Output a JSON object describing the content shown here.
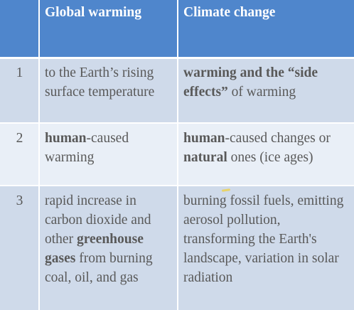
{
  "header": {
    "num": "",
    "col1": "Global warming",
    "col2": "Climate change"
  },
  "rows": [
    {
      "num": "1",
      "col1": [
        {
          "t": "to the Earth’s rising surface temperature",
          "b": false
        }
      ],
      "col2": [
        {
          "t": "warming and the “side effects”",
          "b": true
        },
        {
          "t": " of warming",
          "b": false
        }
      ]
    },
    {
      "num": "2",
      "col1": [
        {
          "t": "human",
          "b": true
        },
        {
          "t": "-caused warming",
          "b": false
        }
      ],
      "col2": [
        {
          "t": "human",
          "b": true
        },
        {
          "t": "-caused changes or ",
          "b": false
        },
        {
          "t": "natural",
          "b": true
        },
        {
          "t": " ones (ice ages)",
          "b": false
        }
      ]
    },
    {
      "num": "3",
      "col1": [
        {
          "t": "rapid increase in carbon dioxide and other ",
          "b": false
        },
        {
          "t": "greenhouse gases",
          "b": true
        },
        {
          "t": " from burning coal, oil, and gas",
          "b": false
        }
      ],
      "col2": [
        {
          "t": "burning fossil fuels, emitting aerosol pollution, transforming the Earth's landscape, variation in solar radiation",
          "b": false
        }
      ]
    }
  ],
  "colors": {
    "header_bg": "#4f86cc",
    "row_dark": "#cfdaea",
    "row_light": "#e9eff7",
    "text": "#595959"
  }
}
